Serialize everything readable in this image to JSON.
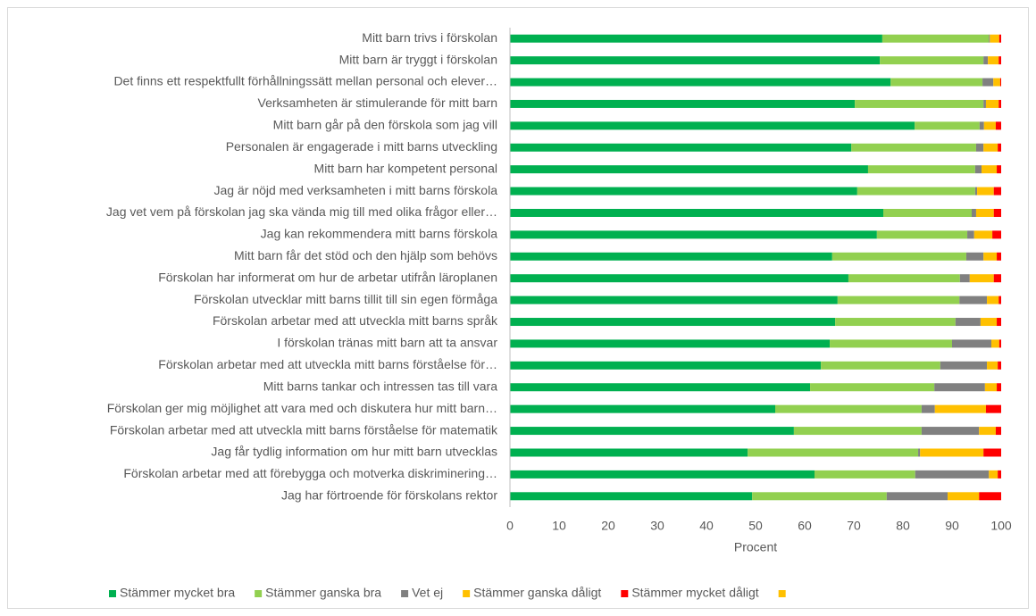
{
  "chart_data": {
    "type": "stacked_barh",
    "categories": [
      "Mitt barn trivs i förskolan",
      "Mitt barn är tryggt i förskolan",
      "Det finns ett respektfullt förhållningssätt mellan personal och elever…",
      "Verksamheten är stimulerande för mitt barn",
      "Mitt barn går på den förskola som jag vill",
      "Personalen är engagerade i mitt barns utveckling",
      "Mitt barn har kompetent personal",
      "Jag är nöjd med verksamheten i mitt barns förskola",
      "Jag vet vem på förskolan jag ska vända mig till med olika frågor eller…",
      "Jag kan rekommendera mitt barns förskola",
      "Mitt barn får det stöd och den hjälp som behövs",
      "Förskolan har informerat om hur de arbetar utifrån läroplanen",
      "Förskolan utvecklar mitt barns tillit till sin egen förmåga",
      "Förskolan arbetar med att utveckla mitt barns språk",
      "I förskolan tränas mitt barn att ta ansvar",
      "Förskolan arbetar med att utveckla mitt barns förståelse för…",
      "Mitt barns tankar och intressen tas till vara",
      "Förskolan ger mig möjlighet att vara med och diskutera hur mitt barn…",
      "Förskolan arbetar med att utveckla mitt barns förståelse för matematik",
      "Jag får tydlig information om hur mitt barn utvecklas",
      "Förskolan arbetar med att förebygga och motverka diskriminering…",
      "Jag har förtroende för förskolans rektor"
    ],
    "series": [
      {
        "name": "Stämmer mycket bra",
        "color": "#00b050",
        "values": [
          75.8,
          75.3,
          77.5,
          70.2,
          82.4,
          69.5,
          72.9,
          70.7,
          76,
          74.7,
          65.6,
          68.9,
          66.7,
          66.2,
          65.1,
          63.3,
          61.1,
          54,
          57.8,
          48.4,
          62,
          49.3
        ]
      },
      {
        "name": "Stämmer ganska bra",
        "color": "#92d050",
        "values": [
          21.7,
          21.1,
          18.7,
          26.2,
          13.2,
          25.4,
          21.8,
          24,
          18,
          18.4,
          27.3,
          22.7,
          24.8,
          24.5,
          24.9,
          24.3,
          25.3,
          29.8,
          26,
          34.7,
          20.5,
          27.4
        ]
      },
      {
        "name": "Vet ej",
        "color": "#808080",
        "values": [
          0.2,
          0.9,
          2.2,
          0.5,
          0.9,
          1.5,
          1.3,
          0.4,
          0.9,
          1.4,
          3.5,
          2,
          5.6,
          5.1,
          8,
          9.5,
          10.3,
          2.7,
          11.7,
          0.4,
          15,
          12.4
        ]
      },
      {
        "name": "Stämmer ganska dåligt",
        "color": "#ffc000",
        "values": [
          1.9,
          2.2,
          1.4,
          2.6,
          2.4,
          2.9,
          3.1,
          3.4,
          3.6,
          3.7,
          2.7,
          4.9,
          2.4,
          3.3,
          1.6,
          2.2,
          2.4,
          10.4,
          3.4,
          12.9,
          1.8,
          6.4
        ]
      },
      {
        "name": "Stämmer mycket dåligt",
        "color": "#ff0000",
        "values": [
          0.4,
          0.5,
          0.2,
          0.5,
          1.1,
          0.7,
          0.9,
          1.5,
          1.5,
          1.8,
          0.9,
          1.5,
          0.5,
          0.9,
          0.4,
          0.7,
          0.9,
          3.1,
          1.1,
          3.6,
          0.7,
          4.5
        ]
      },
      {
        "name": null,
        "color": "#ffc000",
        "values": [
          null,
          null,
          null,
          null,
          null,
          null,
          null,
          null,
          null,
          null,
          null,
          null,
          null,
          null,
          null,
          null,
          null,
          null,
          null,
          null,
          null,
          null
        ]
      }
    ],
    "xlabel": "Procent",
    "xlim": [
      0,
      100
    ],
    "xticks": [
      0,
      10,
      20,
      30,
      40,
      50,
      60,
      70,
      80,
      90,
      100
    ],
    "grid": false,
    "legend": "bottom"
  }
}
